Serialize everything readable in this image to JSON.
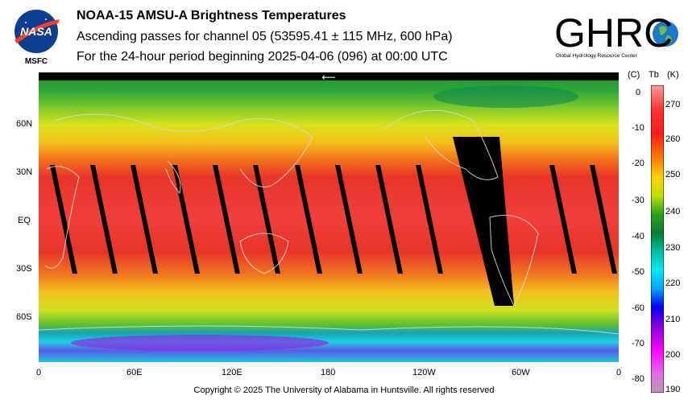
{
  "header": {
    "title": "NOAA-15 AMSU-A Brightness Temperatures",
    "subtitle1": "Ascending passes for channel 05 (53595.41 ± 115 MHz, 600 hPa)",
    "subtitle2": "For the 24-hour period beginning 2025-04-06 (096) at 00:00 UTC"
  },
  "logos": {
    "nasa_text": "NASA",
    "msfc_label": "MSFC",
    "ghrc_text": "GHRC",
    "ghrc_sub": "Global Hydrology Resource Center"
  },
  "map": {
    "lat_labels": [
      "60N",
      "30N",
      "EQ",
      "30S",
      "60S"
    ],
    "lon_labels": [
      "0",
      "60E",
      "120E",
      "180",
      "120W",
      "60W",
      "0"
    ],
    "arrow": "⟵"
  },
  "colorbar": {
    "unit_c": "(C)",
    "unit_tb": "Tb",
    "unit_k": "(K)",
    "c_ticks": [
      "0",
      "-10",
      "-20",
      "-30",
      "-40",
      "-50",
      "-60",
      "-70",
      "-80"
    ],
    "k_ticks": [
      "270",
      "260",
      "250",
      "240",
      "230",
      "220",
      "210",
      "200",
      "190"
    ]
  },
  "footer": {
    "copyright": "Copyright © 2025 The University of Alabama in Huntsville.  All rights reserved"
  }
}
